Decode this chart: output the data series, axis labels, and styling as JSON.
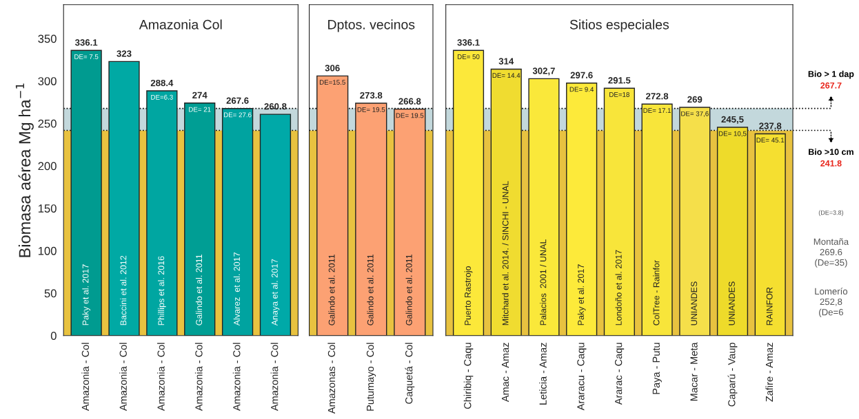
{
  "chart_data": [
    {
      "type": "bar",
      "title": "Amazonia Col",
      "ylabel": "Biomasa aérea Mg ha$^{−1}$",
      "categories": [
        "Amazonia - Col",
        "Amazonia - Col",
        "Amazonia - Col",
        "Amazonia - Col",
        "Amazonia - Col",
        "Amazonia - Col"
      ],
      "values": [
        336.1,
        323,
        288.4,
        274,
        267.6,
        260.8
      ],
      "colors": [
        "#009b90",
        "#00a9a4",
        "#00a6a1",
        "#009e94",
        "#00a3a0",
        "#00a9a8"
      ],
      "value_labels": [
        "336.1",
        "323",
        "288.4",
        "274",
        "267.6",
        "260.8"
      ],
      "ylim": [
        0,
        390
      ],
      "yticks": [
        0,
        50,
        100,
        150,
        200,
        250,
        300,
        350
      ],
      "bands": [
        {
          "axis": "y",
          "from": 0,
          "to": 241.8,
          "color": "#e8c240"
        },
        {
          "axis": "y",
          "from": 241.8,
          "to": 267.7,
          "color": "#c3d8dc"
        }
      ],
      "ref_lines": [
        {
          "axis": "y",
          "value": 267.7,
          "color": "#000000",
          "line_style": "dotted"
        },
        {
          "axis": "y",
          "value": 241.8,
          "color": "#000000",
          "line_style": "dotted"
        }
      ],
      "annotations": [
        "Paky et al. 2017",
        "Baccini et al. 2012",
        "Phillips et al. 2016",
        "Galindo et al. 2011",
        "Alvarez  et al. 2017",
        "Anaya et al. 2017",
        "DE= 7.5",
        "DE=6.3",
        "DE= 21",
        "DE= 27.6"
      ]
    },
    {
      "type": "bar",
      "title": "Dptos. vecinos",
      "tick_labels": "x",
      "categories": [
        "Amazonas - Col",
        "Putumayo - Col",
        "Caquetá - Col"
      ],
      "values": [
        306,
        273.8,
        266.8
      ],
      "colors": [
        "#fca173",
        "#fca173",
        "#fca173"
      ],
      "value_labels": [
        "306",
        "273.8",
        "266.8"
      ],
      "ylim": [
        0,
        390
      ],
      "bands": [
        {
          "axis": "y",
          "from": 0,
          "to": 241.8,
          "color": "#e8c240"
        },
        {
          "axis": "y",
          "from": 241.8,
          "to": 267.7,
          "color": "#c3d8dc"
        }
      ],
      "ref_lines": [
        {
          "axis": "y",
          "value": 267.7,
          "color": "#000000",
          "line_style": "dotted"
        },
        {
          "axis": "y",
          "value": 241.8,
          "color": "#000000",
          "line_style": "dotted"
        }
      ],
      "annotations": [
        {
          "text": "DE=15.5",
          "x": "Amazonas - Col",
          "y": 306
        },
        {
          "text": "DE= 19.5",
          "x": "Putumayo - Col",
          "y": 273.8
        },
        {
          "text": "DE= 19.5",
          "x": "Caquetá - Col",
          "y": 266.8
        },
        "Galindo et al. 2011",
        "Galindo et al. 2011",
        "Galindo et al. 2011"
      ]
    },
    {
      "type": "bar",
      "title": "Sitios especiales",
      "tick_labels": "x",
      "categories": [
        "Chiribiq - Caqu",
        "Amac - Amaz",
        "Leticia - Amaz",
        "Araracu - Caqu",
        "Ararac - Caqu",
        "Paya - Putu",
        "Macar - Meta",
        "Caparú - Vaup",
        "Zafire - Amaz"
      ],
      "values": [
        336.1,
        314,
        302.7,
        297.6,
        291.5,
        272.8,
        269,
        245.5,
        237.8
      ],
      "colors": [
        "#fce83a",
        "#f0dc30",
        "#fae83a",
        "#fdea3a",
        "#f8e53a",
        "#f8e53a",
        "#f5df4a",
        "#eedb2a",
        "#f5df30"
      ],
      "value_labels": [
        "336.1",
        "314",
        "302,7",
        "297.6",
        "291.5",
        "272.8",
        "269",
        "245,5",
        "237.8"
      ],
      "ylim": [
        0,
        390
      ],
      "bands": [
        {
          "axis": "y",
          "from": 0,
          "to": 241.8,
          "color": "#e8c240"
        },
        {
          "axis": "y",
          "from": 241.8,
          "to": 267.7,
          "color": "#c3d8dc"
        }
      ],
      "ref_lines": [
        {
          "axis": "y",
          "value": 267.7,
          "label": "Bio > 1 dap\n267.7",
          "color": "#000000",
          "line_style": "dotted"
        },
        {
          "axis": "y",
          "value": 241.8,
          "label": "Bio >10 cm\n241.8",
          "color": "#000000",
          "line_style": "dotted"
        }
      ],
      "annotations": [
        {
          "text": "DE= 50",
          "x": "Chiribiq - Caqu",
          "y": 336.1
        },
        {
          "text": "DE= 14.4",
          "x": "Amac - Amaz",
          "y": 314
        },
        {
          "text": "DE= 9.4",
          "x": "Araracu - Caqu",
          "y": 297.6
        },
        {
          "text": "DE=18",
          "x": "Ararac - Caqu",
          "y": 291.5
        },
        {
          "text": "DE= 17.1",
          "x": "Paya - Putu",
          "y": 272.8
        },
        {
          "text": "DE= 37,6",
          "x": "Macar - Meta",
          "y": 269
        },
        {
          "text": "DE= 10,5",
          "x": "Caparú - Vaup",
          "y": 245.5
        },
        {
          "text": "DE= 45.1",
          "x": "Zafire - Amaz",
          "y": 237.8
        },
        "Puerto Rastrojo",
        "Mitchard et al. 2014. / SINCHI - UNAL",
        "Palacios  2001 / UNAL",
        "Paky et al. 2017",
        "Londoño et al. 2017",
        "ColTree - Rainfor",
        "UNIANDES",
        "UNIANDES",
        "RAINFOR",
        "(DE=3.8)",
        "Montaña\n269.6\n(De=35)",
        "Lomerío\n252,8\n(De=6"
      ]
    }
  ]
}
